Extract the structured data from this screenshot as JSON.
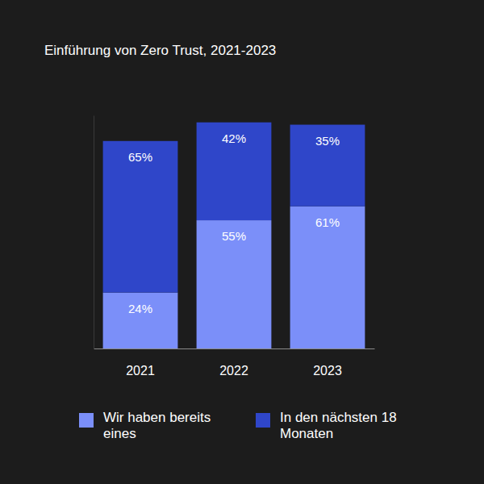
{
  "chart_data": {
    "type": "bar",
    "title": "Einführung von Zero Trust, 2021-2023",
    "categories": [
      "2021",
      "2022",
      "2023"
    ],
    "series": [
      {
        "name": "Wir haben bereits eines",
        "color": "#7b8ff9",
        "values": [
          24,
          55,
          61
        ],
        "value_labels": [
          "24%",
          "55%",
          "61%"
        ]
      },
      {
        "name": "In den nächsten 18 Monaten",
        "color": "#2f46c9",
        "values": [
          65,
          42,
          35
        ],
        "value_labels": [
          "65%",
          "42%",
          "35%"
        ]
      }
    ],
    "stacked": true,
    "data_labels": true,
    "ylim": [
      0,
      100
    ],
    "tick_labels": "x",
    "grid": false
  }
}
